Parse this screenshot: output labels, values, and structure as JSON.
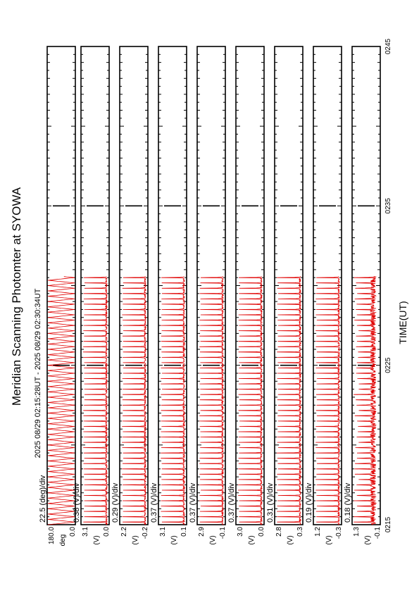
{
  "chart_data": {
    "type": "line",
    "title": "Meridian Scanning Photomter at SYOWA",
    "subtitle": "2025 08/29 02:15:28UT - 2025 08/29 02:30:34UT",
    "xlabel": "TIME(UT)",
    "x_ticks": [
      "0215",
      "0225",
      "0235",
      "0245"
    ],
    "x_range_min": [
      15,
      45
    ],
    "data_end_min": 30.57,
    "line_color": "#e00000",
    "grid": false,
    "panels": [
      {
        "scale": "22.5 (deg)/div",
        "units_label": "deg",
        "ymax": "180.0",
        "ymin": "0.0",
        "yrange": [
          0,
          180
        ],
        "kind": "scan"
      },
      {
        "scale": "0.38 (V)/div",
        "units_label": "(V)",
        "ymax": "3.1",
        "ymin": "0.0",
        "yrange": [
          0,
          3.1
        ],
        "kind": "pulse"
      },
      {
        "scale": "0.29 (V)/div",
        "units_label": "(V)",
        "ymax": "2.2",
        "ymin": "-0.2",
        "yrange": [
          -0.2,
          2.2
        ],
        "kind": "pulse"
      },
      {
        "scale": "0.37 (V)/div",
        "units_label": "(V)",
        "ymax": "3.1",
        "ymin": "0.1",
        "yrange": [
          0.1,
          3.1
        ],
        "kind": "pulse"
      },
      {
        "scale": "0.37 (V)/div",
        "units_label": "(V)",
        "ymax": "2.9",
        "ymin": "-0.1",
        "yrange": [
          -0.1,
          2.9
        ],
        "kind": "pulse"
      },
      {
        "scale": "0.37 (V)/div",
        "units_label": "(V)",
        "ymax": "3.0",
        "ymin": "0.0",
        "yrange": [
          0,
          3.0
        ],
        "kind": "pulse"
      },
      {
        "scale": "0.31 (V)/div",
        "units_label": "(V)",
        "ymax": "2.8",
        "ymin": "0.3",
        "yrange": [
          0.3,
          2.8
        ],
        "kind": "pulse"
      },
      {
        "scale": "0.19 (V)/div",
        "units_label": "(V)",
        "ymax": "1.2",
        "ymin": "-0.3",
        "yrange": [
          -0.3,
          1.2
        ],
        "kind": "pulse"
      },
      {
        "scale": "0.18 (V)/div",
        "units_label": "(V)",
        "ymax": "1.3",
        "ymin": "-0.1",
        "yrange": [
          -0.1,
          1.3
        ],
        "kind": "noisy"
      }
    ]
  }
}
